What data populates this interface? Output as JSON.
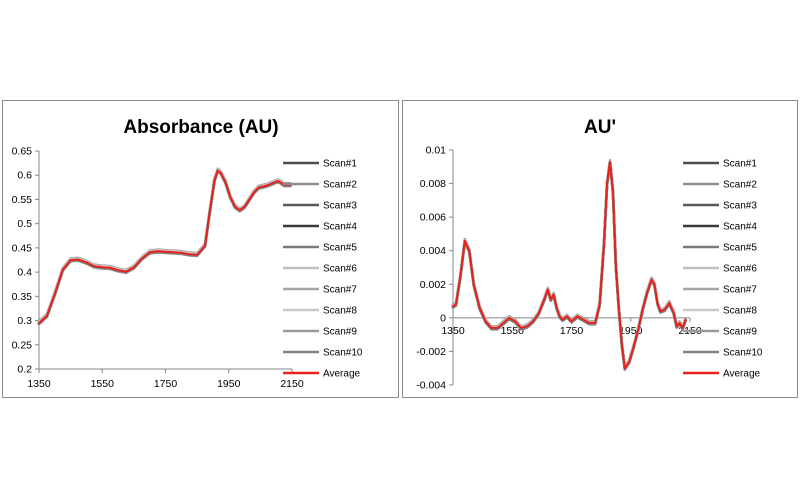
{
  "chart_data": [
    {
      "type": "line",
      "title": "Absorbance (AU)",
      "xlabel": "",
      "ylabel": "",
      "xlim": [
        1350,
        2150
      ],
      "ylim": [
        0.2,
        0.65
      ],
      "x_ticks": [
        1350,
        1550,
        1750,
        1950,
        2150
      ],
      "y_ticks": [
        0.2,
        0.25,
        0.3,
        0.35,
        0.4,
        0.45,
        0.5,
        0.55,
        0.6,
        0.65
      ],
      "y_tick_labels": [
        "0.2",
        "0.25",
        "0.3",
        "0.35",
        "0.4",
        "0.45",
        "0.5",
        "0.55",
        "0.6",
        "0.65"
      ],
      "grid": false,
      "legend": "right",
      "x": [
        1350,
        1375,
        1400,
        1425,
        1450,
        1475,
        1500,
        1525,
        1550,
        1575,
        1600,
        1625,
        1650,
        1675,
        1700,
        1725,
        1750,
        1775,
        1800,
        1825,
        1850,
        1875,
        1890,
        1905,
        1915,
        1925,
        1940,
        1955,
        1970,
        1985,
        2000,
        2015,
        2030,
        2045,
        2060,
        2075,
        2090,
        2105,
        2115,
        2125,
        2135,
        2145
      ],
      "series": [
        {
          "name": "Scan#1",
          "color": "#4d4d4d",
          "offset": 0.003
        },
        {
          "name": "Scan#2",
          "color": "#8c8c8c",
          "offset": 0.002
        },
        {
          "name": "Scan#3",
          "color": "#595959",
          "offset": 0.001
        },
        {
          "name": "Scan#4",
          "color": "#3a3a3a",
          "offset": 0.0
        },
        {
          "name": "Scan#5",
          "color": "#7a7a7a",
          "offset": -0.001
        },
        {
          "name": "Scan#6",
          "color": "#bfbfbf",
          "offset": 0.0025
        },
        {
          "name": "Scan#7",
          "color": "#a6a6a6",
          "offset": -0.002
        },
        {
          "name": "Scan#8",
          "color": "#c8c8c8",
          "offset": 0.0015
        },
        {
          "name": "Scan#9",
          "color": "#9a9a9a",
          "offset": -0.0025
        },
        {
          "name": "Scan#10",
          "color": "#808080",
          "offset": -0.0015
        },
        {
          "name": "Average",
          "color": "#e8211b",
          "offset": 0.0,
          "values": [
            0.295,
            0.31,
            0.355,
            0.405,
            0.425,
            0.426,
            0.42,
            0.412,
            0.41,
            0.409,
            0.404,
            0.401,
            0.41,
            0.428,
            0.441,
            0.443,
            0.442,
            0.441,
            0.44,
            0.437,
            0.436,
            0.455,
            0.525,
            0.59,
            0.61,
            0.605,
            0.585,
            0.555,
            0.535,
            0.528,
            0.535,
            0.55,
            0.565,
            0.575,
            0.577,
            0.58,
            0.584,
            0.588,
            0.585,
            0.58,
            0.58,
            0.58
          ]
        }
      ]
    },
    {
      "type": "line",
      "title": "AU'",
      "xlabel": "",
      "ylabel": "",
      "xlim": [
        1350,
        2150
      ],
      "ylim": [
        -0.004,
        0.01
      ],
      "x_ticks": [
        1350,
        1550,
        1750,
        1950,
        2150
      ],
      "y_ticks": [
        -0.004,
        -0.002,
        0,
        0.002,
        0.004,
        0.006,
        0.008,
        0.01
      ],
      "y_tick_labels": [
        "-0.004",
        "-0.002",
        "0",
        "0.002",
        "0.004",
        "0.006",
        "0.008",
        "0.01"
      ],
      "grid": false,
      "legend": "right",
      "x": [
        1350,
        1360,
        1375,
        1390,
        1405,
        1420,
        1440,
        1460,
        1480,
        1500,
        1520,
        1540,
        1560,
        1580,
        1600,
        1620,
        1640,
        1660,
        1670,
        1680,
        1690,
        1700,
        1710,
        1720,
        1735,
        1750,
        1770,
        1790,
        1810,
        1830,
        1845,
        1860,
        1870,
        1880,
        1890,
        1900,
        1910,
        1920,
        1930,
        1945,
        1960,
        1975,
        1990,
        2005,
        2020,
        2030,
        2040,
        2050,
        2065,
        2080,
        2095,
        2105,
        2115,
        2125,
        2135
      ],
      "series": [
        {
          "name": "Scan#1",
          "color": "#4d4d4d",
          "offset": 8e-05
        },
        {
          "name": "Scan#2",
          "color": "#8c8c8c",
          "offset": 5e-05
        },
        {
          "name": "Scan#3",
          "color": "#595959",
          "offset": 3e-05
        },
        {
          "name": "Scan#4",
          "color": "#3a3a3a",
          "offset": 0.0
        },
        {
          "name": "Scan#5",
          "color": "#7a7a7a",
          "offset": -3e-05
        },
        {
          "name": "Scan#6",
          "color": "#bfbfbf",
          "offset": 6e-05
        },
        {
          "name": "Scan#7",
          "color": "#a6a6a6",
          "offset": -5e-05
        },
        {
          "name": "Scan#8",
          "color": "#c8c8c8",
          "offset": 4e-05
        },
        {
          "name": "Scan#9",
          "color": "#9a9a9a",
          "offset": -6e-05
        },
        {
          "name": "Scan#10",
          "color": "#808080",
          "offset": -8e-05
        },
        {
          "name": "Average",
          "color": "#e8211b",
          "offset": 0.0,
          "values": [
            0.0007,
            0.0008,
            0.0025,
            0.0046,
            0.004,
            0.002,
            0.0006,
            -0.0002,
            -0.0006,
            -0.0006,
            -0.0003,
            0.0,
            -0.0002,
            -0.0006,
            -0.0005,
            -0.0002,
            0.0003,
            0.0012,
            0.0017,
            0.0011,
            0.0014,
            0.0006,
            0.0001,
            -0.0001,
            0.0001,
            -0.0002,
            0.0001,
            -0.0001,
            -0.0003,
            -0.0003,
            0.0008,
            0.0045,
            0.008,
            0.0093,
            0.0075,
            0.003,
            0.0005,
            -0.0016,
            -0.003,
            -0.0026,
            -0.0017,
            -0.0007,
            0.0005,
            0.0015,
            0.0023,
            0.002,
            0.0009,
            0.0004,
            0.0005,
            0.0009,
            0.0003,
            -0.0005,
            -0.0003,
            -0.0006,
            -0.0001
          ]
        }
      ]
    }
  ]
}
